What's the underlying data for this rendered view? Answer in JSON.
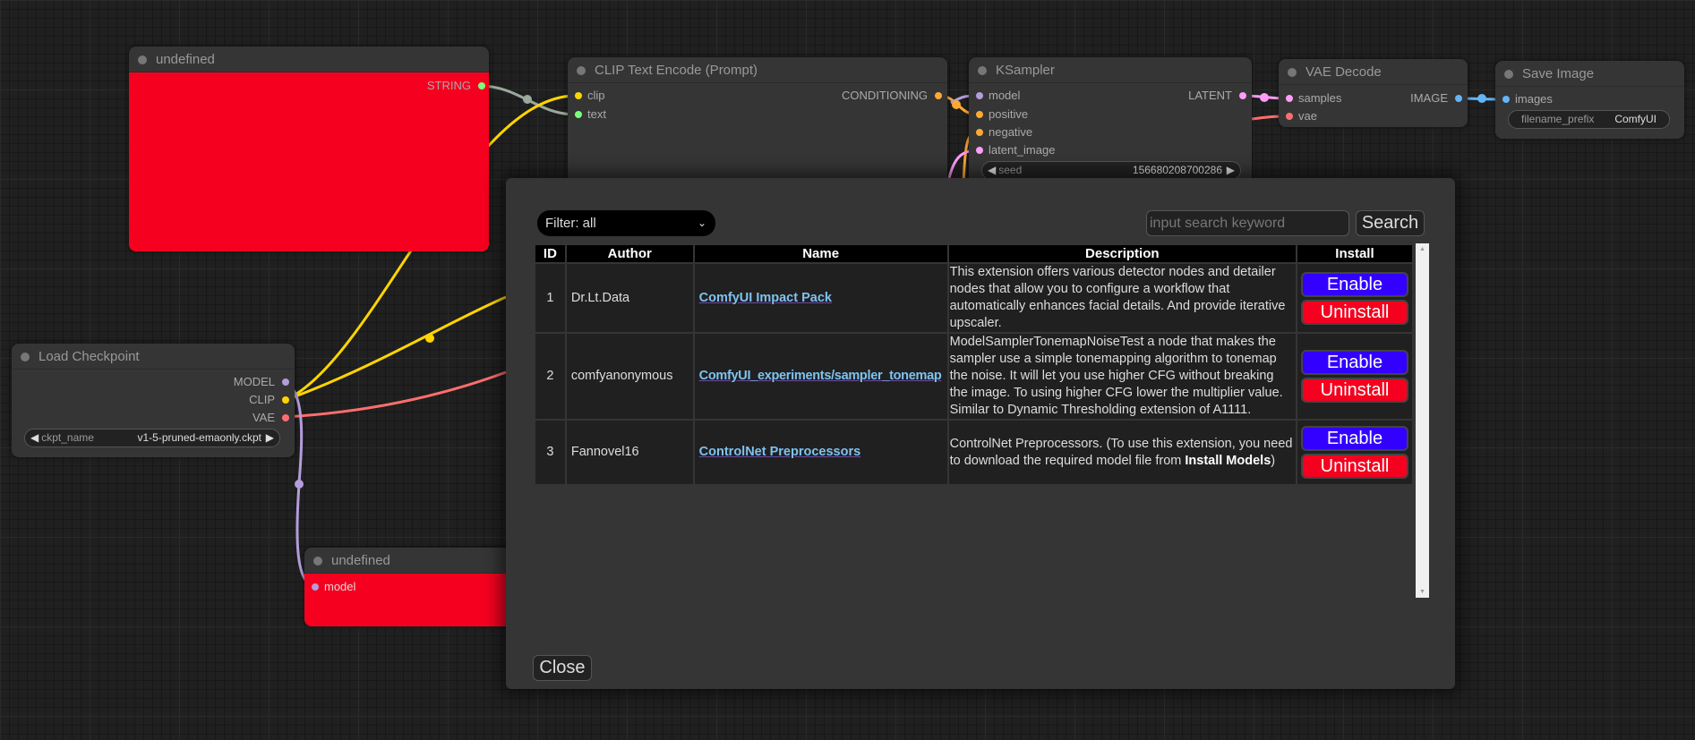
{
  "nodes": {
    "string_node": {
      "title": "undefined",
      "output": "STRING"
    },
    "clip_encode": {
      "title": "CLIP Text Encode (Prompt)",
      "inputs": [
        "clip",
        "text"
      ],
      "output": "CONDITIONING"
    },
    "ksampler": {
      "title": "KSampler",
      "inputs": [
        "model",
        "positive",
        "negative",
        "latent_image"
      ],
      "output": "LATENT",
      "seed_label": "seed",
      "seed_value": "156680208700286"
    },
    "vae_decode": {
      "title": "VAE Decode",
      "inputs": [
        "samples",
        "vae"
      ],
      "output": "IMAGE"
    },
    "save_image": {
      "title": "Save Image",
      "input": "images",
      "prefix_label": "filename_prefix",
      "prefix_value": "ComfyUI"
    },
    "load_checkpoint": {
      "title": "Load Checkpoint",
      "outputs": [
        "MODEL",
        "CLIP",
        "VAE"
      ],
      "ckpt_label": "ckpt_name",
      "ckpt_value": "v1-5-pruned-emaonly.ckpt"
    },
    "model_node": {
      "title": "undefined",
      "input": "model"
    }
  },
  "dialog": {
    "filter": "Filter: all",
    "search_placeholder": "input search keyword",
    "search_label": "Search",
    "close_label": "Close",
    "columns": [
      "ID",
      "Author",
      "Name",
      "Description",
      "Install"
    ],
    "rows": [
      {
        "id": "1",
        "author": "Dr.Lt.Data",
        "name": "ComfyUI Impact Pack",
        "description": "This extension offers various detector nodes and detailer nodes that allow you to configure a workflow that automatically enhances facial details. And provide iterative upscaler.",
        "enable": "Enable",
        "uninstall": "Uninstall"
      },
      {
        "id": "2",
        "author": "comfyanonymous",
        "name": "ComfyUI_experiments/sampler_tonemap",
        "description": "ModelSamplerTonemapNoiseTest a node that makes the sampler use a simple tonemapping algorithm to tonemap the noise. It will let you use higher CFG without breaking the image. To using higher CFG lower the multiplier value. Similar to Dynamic Thresholding extension of A1111.",
        "enable": "Enable",
        "uninstall": "Uninstall"
      },
      {
        "id": "3",
        "author": "Fannovel16",
        "name": "ControlNet Preprocessors",
        "description_pre": "ControlNet Preprocessors. (To use this extension, you need to download the required model file from ",
        "description_bold": "Install Models",
        "description_post": ")",
        "enable": "Enable",
        "uninstall": "Uninstall"
      }
    ]
  },
  "colors": {
    "enable": "#3300ff",
    "uninstall": "#f5001f",
    "red_node": "#f5001f",
    "clip": "#ffd500",
    "model": "#b39ddb",
    "vae": "#ff6e6e",
    "conditioning": "#ffa931",
    "latent": "#ff9cf9",
    "image": "#64b5f6",
    "string": "#7dff7d"
  }
}
